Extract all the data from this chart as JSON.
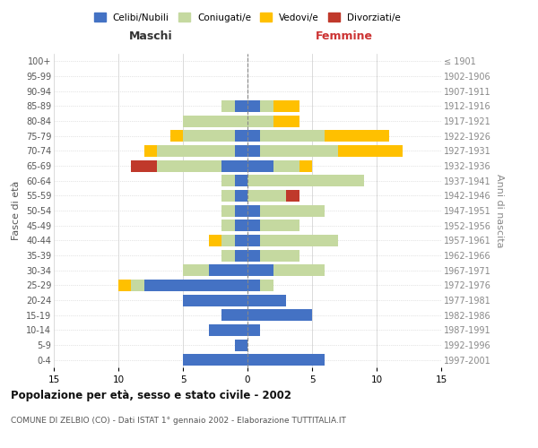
{
  "age_groups": [
    "0-4",
    "5-9",
    "10-14",
    "15-19",
    "20-24",
    "25-29",
    "30-34",
    "35-39",
    "40-44",
    "45-49",
    "50-54",
    "55-59",
    "60-64",
    "65-69",
    "70-74",
    "75-79",
    "80-84",
    "85-89",
    "90-94",
    "95-99",
    "100+"
  ],
  "birth_years": [
    "1997-2001",
    "1992-1996",
    "1987-1991",
    "1982-1986",
    "1977-1981",
    "1972-1976",
    "1967-1971",
    "1962-1966",
    "1957-1961",
    "1952-1956",
    "1947-1951",
    "1942-1946",
    "1937-1941",
    "1932-1936",
    "1927-1931",
    "1922-1926",
    "1917-1921",
    "1912-1916",
    "1907-1911",
    "1902-1906",
    "≤ 1901"
  ],
  "male": {
    "celibi": [
      5,
      1,
      3,
      2,
      5,
      8,
      3,
      1,
      1,
      1,
      1,
      1,
      1,
      2,
      1,
      1,
      0,
      1,
      0,
      0,
      0
    ],
    "coniugati": [
      0,
      0,
      0,
      0,
      0,
      1,
      2,
      1,
      1,
      1,
      1,
      1,
      1,
      5,
      6,
      4,
      5,
      1,
      0,
      0,
      0
    ],
    "vedovi": [
      0,
      0,
      0,
      0,
      0,
      1,
      0,
      0,
      1,
      0,
      0,
      0,
      0,
      0,
      1,
      1,
      0,
      0,
      0,
      0,
      0
    ],
    "divorziati": [
      0,
      0,
      0,
      0,
      0,
      0,
      0,
      0,
      0,
      0,
      0,
      0,
      0,
      2,
      0,
      0,
      0,
      0,
      0,
      0,
      0
    ]
  },
  "female": {
    "nubili": [
      6,
      0,
      1,
      5,
      3,
      1,
      2,
      1,
      1,
      1,
      1,
      0,
      0,
      2,
      1,
      1,
      0,
      1,
      0,
      0,
      0
    ],
    "coniugate": [
      0,
      0,
      0,
      0,
      0,
      1,
      4,
      3,
      6,
      3,
      5,
      3,
      9,
      2,
      6,
      5,
      2,
      1,
      0,
      0,
      0
    ],
    "vedove": [
      0,
      0,
      0,
      0,
      0,
      0,
      0,
      0,
      0,
      0,
      0,
      0,
      0,
      1,
      5,
      5,
      2,
      2,
      0,
      0,
      0
    ],
    "divorziate": [
      0,
      0,
      0,
      0,
      0,
      0,
      0,
      0,
      0,
      0,
      0,
      1,
      0,
      0,
      0,
      0,
      0,
      0,
      0,
      0,
      0
    ]
  },
  "colors": {
    "celibi_nubili": "#4472c4",
    "coniugati": "#c5d9a0",
    "vedovi": "#ffc000",
    "divorziati": "#c0392b"
  },
  "xlim": 15,
  "title": "Popolazione per età, sesso e stato civile - 2002",
  "subtitle": "COMUNE DI ZELBIO (CO) - Dati ISTAT 1° gennaio 2002 - Elaborazione TUTTITALIA.IT",
  "xlabel_left": "Maschi",
  "xlabel_right": "Femmine",
  "ylabel_left": "Fasce di età",
  "ylabel_right": "Anni di nascita",
  "legend_labels": [
    "Celibi/Nubili",
    "Coniugati/e",
    "Vedovi/e",
    "Divorziati/e"
  ],
  "bg_color": "#ffffff",
  "grid_color": "#cccccc"
}
